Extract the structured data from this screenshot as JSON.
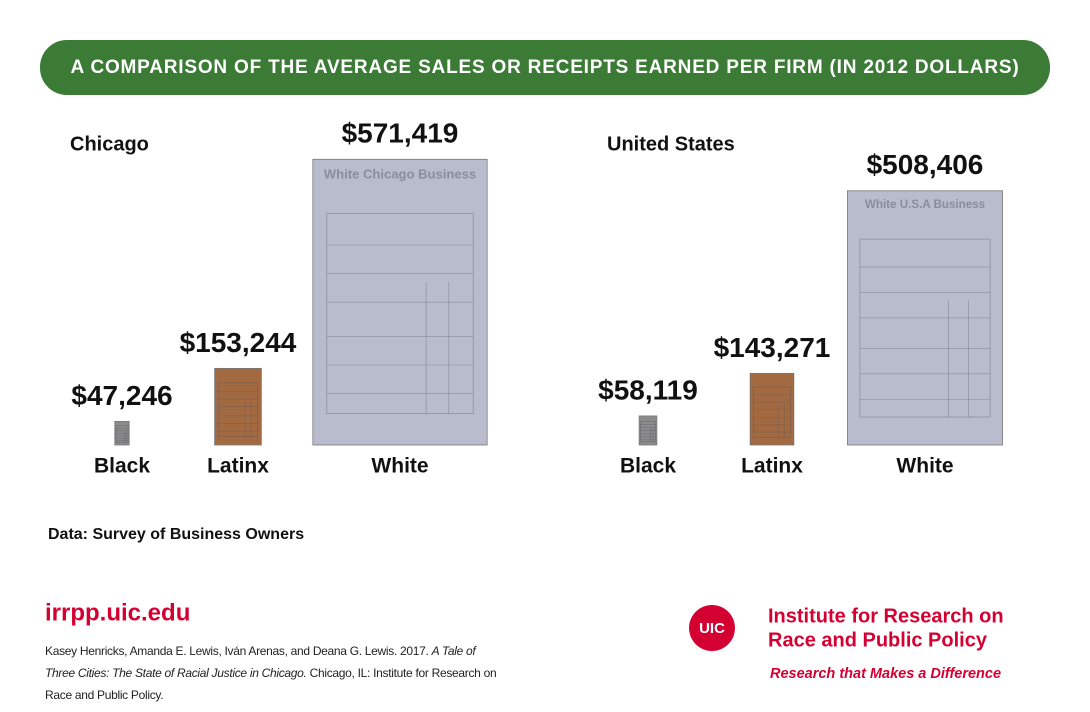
{
  "title": "A COMPARISON OF THE AVERAGE SALES OR RECEIPTS EARNED PER FIRM (IN 2012 DOLLARS)",
  "chart_data": [
    {
      "type": "pictorial",
      "title": "Chicago",
      "categories": [
        "Black",
        "Latinx",
        "White"
      ],
      "values": [
        47246,
        153244,
        571419
      ],
      "value_labels": [
        "$47,246",
        "$153,244",
        "$571,419"
      ],
      "colors": [
        "#8c8c8c",
        "#a36a42",
        "#b9bccd"
      ],
      "receipt_title": "White Chicago Business"
    },
    {
      "type": "pictorial",
      "title": "United States",
      "categories": [
        "Black",
        "Latinx",
        "White"
      ],
      "values": [
        58119,
        143271,
        508406
      ],
      "value_labels": [
        "$58,119",
        "$143,271",
        "$508,406"
      ],
      "colors": [
        "#8c8c8c",
        "#a36a42",
        "#b9bccd"
      ],
      "receipt_title": "White U.S.A Business"
    }
  ],
  "source": "Data: Survey of Business Owners",
  "website": "irrpp.uic.edu",
  "citation": {
    "authors": "Kasey Henricks, Amanda E. Lewis, Iván Arenas, and Deana G. Lewis. 2017.",
    "work": "A Tale of Three Cities: The State of Racial Justice in Chicago.",
    "publisher": "Chicago, IL: Institute for Research on Race and Public Policy."
  },
  "logo": "UIC",
  "institute": [
    "Institute for Research on",
    "Race and Public Policy"
  ],
  "tagline": "Research that Makes a Difference"
}
